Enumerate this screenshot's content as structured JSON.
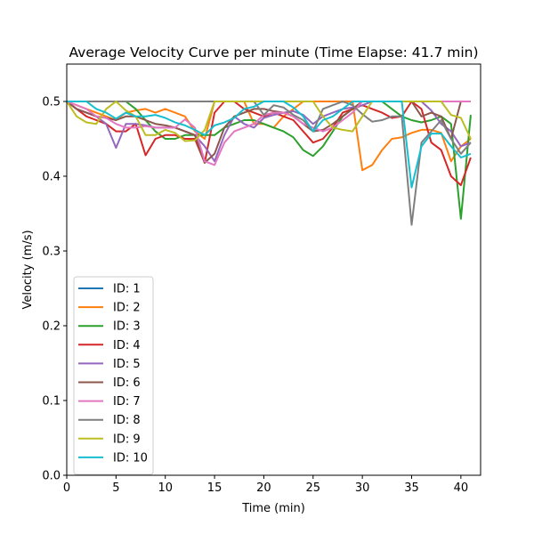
{
  "chart_data": {
    "type": "line",
    "title": "Average Velocity Curve per minute (Time Elapse: 41.7 min)",
    "xlabel": "Time (min)",
    "ylabel": "Velocity (m/s)",
    "xlim": [
      0,
      42
    ],
    "ylim": [
      0,
      0.55
    ],
    "xticks": [
      0,
      5,
      10,
      15,
      20,
      25,
      30,
      35,
      40
    ],
    "yticks": [
      0.0,
      0.1,
      0.2,
      0.3,
      0.4,
      0.5
    ],
    "ytick_labels": [
      "0.0",
      "0.1",
      "0.2",
      "0.3",
      "0.4",
      "0.5"
    ],
    "grid": false,
    "legend_position": "lower-left",
    "x": [
      0,
      1,
      2,
      3,
      4,
      5,
      6,
      7,
      8,
      9,
      10,
      11,
      12,
      13,
      14,
      15,
      16,
      17,
      18,
      19,
      20,
      21,
      22,
      23,
      24,
      25,
      26,
      27,
      28,
      29,
      30,
      31,
      32,
      33,
      34,
      35,
      36,
      37,
      38,
      39,
      40,
      41
    ],
    "series": [
      {
        "name": "ID: 1",
        "color": "#1f77b4",
        "values": [
          0.5,
          0.5,
          0.5,
          0.5,
          0.5,
          0.5,
          0.5,
          0.5,
          0.5,
          0.5,
          0.5,
          0.5,
          0.5,
          0.5,
          0.5,
          0.5,
          0.5,
          0.5,
          0.5,
          0.5,
          0.5,
          0.5,
          0.5,
          0.5,
          0.5,
          0.5,
          0.5,
          0.5,
          0.5,
          0.5,
          0.5,
          0.5,
          0.5,
          0.5,
          0.5,
          0.5,
          0.5,
          0.5,
          0.5,
          0.5,
          0.5,
          0.5
        ]
      },
      {
        "name": "ID: 2",
        "color": "#ff7f0e",
        "values": [
          0.5,
          0.495,
          0.49,
          0.485,
          0.48,
          0.475,
          0.485,
          0.488,
          0.49,
          0.485,
          0.49,
          0.485,
          0.48,
          0.46,
          0.45,
          0.5,
          0.5,
          0.5,
          0.5,
          0.47,
          0.47,
          0.465,
          0.48,
          0.49,
          0.5,
          0.5,
          0.5,
          0.5,
          0.5,
          0.5,
          0.408,
          0.415,
          0.435,
          0.45,
          0.452,
          0.458,
          0.462,
          0.462,
          0.458,
          0.42,
          0.44,
          0.45
        ]
      },
      {
        "name": "ID: 3",
        "color": "#2ca02c",
        "values": [
          0.5,
          0.5,
          0.5,
          0.5,
          0.5,
          0.5,
          0.5,
          0.49,
          0.475,
          0.46,
          0.45,
          0.45,
          0.455,
          0.455,
          0.455,
          0.455,
          0.465,
          0.47,
          0.475,
          0.475,
          0.47,
          0.465,
          0.46,
          0.452,
          0.435,
          0.427,
          0.44,
          0.46,
          0.48,
          0.49,
          0.5,
          0.5,
          0.5,
          0.49,
          0.48,
          0.475,
          0.472,
          0.475,
          0.48,
          0.47,
          0.343,
          0.482
        ]
      },
      {
        "name": "ID: 4",
        "color": "#d62728",
        "values": [
          0.5,
          0.49,
          0.48,
          0.475,
          0.47,
          0.46,
          0.46,
          0.47,
          0.428,
          0.45,
          0.455,
          0.455,
          0.45,
          0.45,
          0.418,
          0.485,
          0.5,
          0.5,
          0.49,
          0.485,
          0.48,
          0.485,
          0.48,
          0.475,
          0.46,
          0.445,
          0.45,
          0.465,
          0.485,
          0.49,
          0.495,
          0.49,
          0.485,
          0.478,
          0.48,
          0.5,
          0.49,
          0.445,
          0.435,
          0.4,
          0.388,
          0.425
        ]
      },
      {
        "name": "ID: 5",
        "color": "#9467bd",
        "values": [
          0.5,
          0.49,
          0.485,
          0.48,
          0.47,
          0.438,
          0.47,
          0.47,
          0.468,
          0.465,
          0.465,
          0.465,
          0.46,
          0.455,
          0.44,
          0.42,
          0.455,
          0.48,
          0.47,
          0.465,
          0.478,
          0.482,
          0.485,
          0.487,
          0.482,
          0.47,
          0.48,
          0.485,
          0.49,
          0.492,
          0.495,
          0.5,
          0.5,
          0.5,
          0.5,
          0.5,
          0.5,
          0.488,
          0.47,
          0.46,
          0.44,
          0.445
        ]
      },
      {
        "name": "ID: 6",
        "color": "#8c564b",
        "values": [
          0.5,
          0.49,
          0.485,
          0.48,
          0.478,
          0.475,
          0.48,
          0.48,
          0.475,
          0.47,
          0.468,
          0.465,
          0.46,
          0.455,
          0.418,
          0.43,
          0.465,
          0.48,
          0.485,
          0.49,
          0.49,
          0.487,
          0.485,
          0.48,
          0.47,
          0.46,
          0.462,
          0.47,
          0.48,
          0.49,
          0.5,
          0.5,
          0.5,
          0.5,
          0.5,
          0.5,
          0.48,
          0.485,
          0.48,
          0.45,
          0.5,
          0.5
        ]
      },
      {
        "name": "ID: 7",
        "color": "#e377c2",
        "values": [
          0.5,
          0.495,
          0.49,
          0.48,
          0.478,
          0.47,
          0.465,
          0.465,
          0.467,
          0.465,
          0.465,
          0.465,
          0.476,
          0.465,
          0.42,
          0.415,
          0.445,
          0.46,
          0.465,
          0.47,
          0.482,
          0.485,
          0.485,
          0.48,
          0.47,
          0.465,
          0.46,
          0.465,
          0.475,
          0.485,
          0.5,
          0.5,
          0.5,
          0.5,
          0.5,
          0.5,
          0.5,
          0.5,
          0.5,
          0.5,
          0.5,
          0.5
        ]
      },
      {
        "name": "ID: 8",
        "color": "#7f7f7f",
        "values": [
          0.5,
          0.5,
          0.5,
          0.5,
          0.5,
          0.5,
          0.5,
          0.5,
          0.5,
          0.5,
          0.5,
          0.5,
          0.5,
          0.5,
          0.5,
          0.5,
          0.5,
          0.5,
          0.5,
          0.5,
          0.482,
          0.495,
          0.492,
          0.482,
          0.475,
          0.46,
          0.49,
          0.495,
          0.5,
          0.495,
          0.483,
          0.473,
          0.475,
          0.48,
          0.48,
          0.335,
          0.445,
          0.46,
          0.475,
          0.45,
          0.43,
          0.445
        ]
      },
      {
        "name": "ID: 9",
        "color": "#bcbd22",
        "values": [
          0.5,
          0.48,
          0.472,
          0.47,
          0.49,
          0.5,
          0.488,
          0.48,
          0.455,
          0.455,
          0.462,
          0.458,
          0.447,
          0.448,
          0.462,
          0.5,
          0.5,
          0.5,
          0.5,
          0.5,
          0.5,
          0.5,
          0.5,
          0.5,
          0.5,
          0.5,
          0.48,
          0.465,
          0.462,
          0.46,
          0.48,
          0.5,
          0.5,
          0.5,
          0.5,
          0.5,
          0.5,
          0.5,
          0.5,
          0.482,
          0.478,
          0.45
        ]
      },
      {
        "name": "ID: 10",
        "color": "#17becf",
        "values": [
          0.5,
          0.5,
          0.5,
          0.49,
          0.485,
          0.477,
          0.485,
          0.48,
          0.48,
          0.482,
          0.478,
          0.472,
          0.468,
          0.462,
          0.455,
          0.468,
          0.472,
          0.478,
          0.49,
          0.493,
          0.5,
          0.5,
          0.5,
          0.492,
          0.48,
          0.46,
          0.475,
          0.48,
          0.49,
          0.5,
          0.5,
          0.5,
          0.5,
          0.5,
          0.5,
          0.385,
          0.44,
          0.457,
          0.457,
          0.44,
          0.425,
          0.43
        ]
      }
    ]
  }
}
